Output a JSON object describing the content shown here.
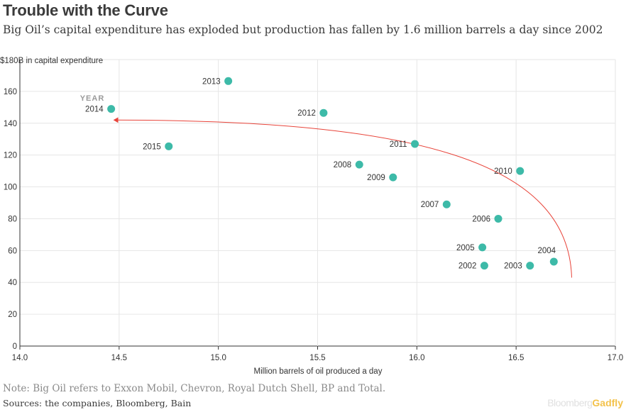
{
  "title": "Trouble with the Curve",
  "subtitle": "Big Oil’s capital expenditure has exploded but production has fallen by 1.6 million barrels a day since 2002",
  "note": "Note: Big Oil refers to Exxon Mobil, Chevron, Royal Dutch Shell, BP and Total.",
  "sources": "Sources: the companies, Bloomberg, Bain",
  "brand": {
    "part1": "Bloomberg",
    "part2": "Gadfly"
  },
  "chart_data": {
    "type": "scatter",
    "xlabel": "Million barrels of oil produced a day",
    "ylabel": "$180B in capital expenditure",
    "xlim": [
      14.0,
      17.0
    ],
    "ylim": [
      0,
      180
    ],
    "xticks": [
      14.0,
      14.5,
      15.0,
      15.5,
      16.0,
      16.5,
      17.0
    ],
    "yticks": [
      0,
      20,
      40,
      60,
      80,
      100,
      120,
      140,
      160
    ],
    "grid": true,
    "legend_annotation": "YEAR",
    "point_color": "#3dbaa8",
    "arrow_color": "#e8443a",
    "points": [
      {
        "label": "2002",
        "x": 16.34,
        "y": 50.5
      },
      {
        "label": "2003",
        "x": 16.57,
        "y": 50.5
      },
      {
        "label": "2004",
        "x": 16.69,
        "y": 53
      },
      {
        "label": "2005",
        "x": 16.33,
        "y": 62
      },
      {
        "label": "2006",
        "x": 16.41,
        "y": 80
      },
      {
        "label": "2007",
        "x": 16.15,
        "y": 89
      },
      {
        "label": "2008",
        "x": 15.71,
        "y": 114
      },
      {
        "label": "2009",
        "x": 15.88,
        "y": 106
      },
      {
        "label": "2010",
        "x": 16.52,
        "y": 110
      },
      {
        "label": "2011",
        "x": 15.99,
        "y": 127
      },
      {
        "label": "2012",
        "x": 15.53,
        "y": 146.5
      },
      {
        "label": "2013",
        "x": 15.05,
        "y": 166.5
      },
      {
        "label": "2014",
        "x": 14.46,
        "y": 149
      },
      {
        "label": "2015",
        "x": 14.75,
        "y": 125.5
      }
    ],
    "trend_arrow": {
      "from": [
        16.78,
        43
      ],
      "to": [
        14.46,
        142
      ]
    }
  }
}
